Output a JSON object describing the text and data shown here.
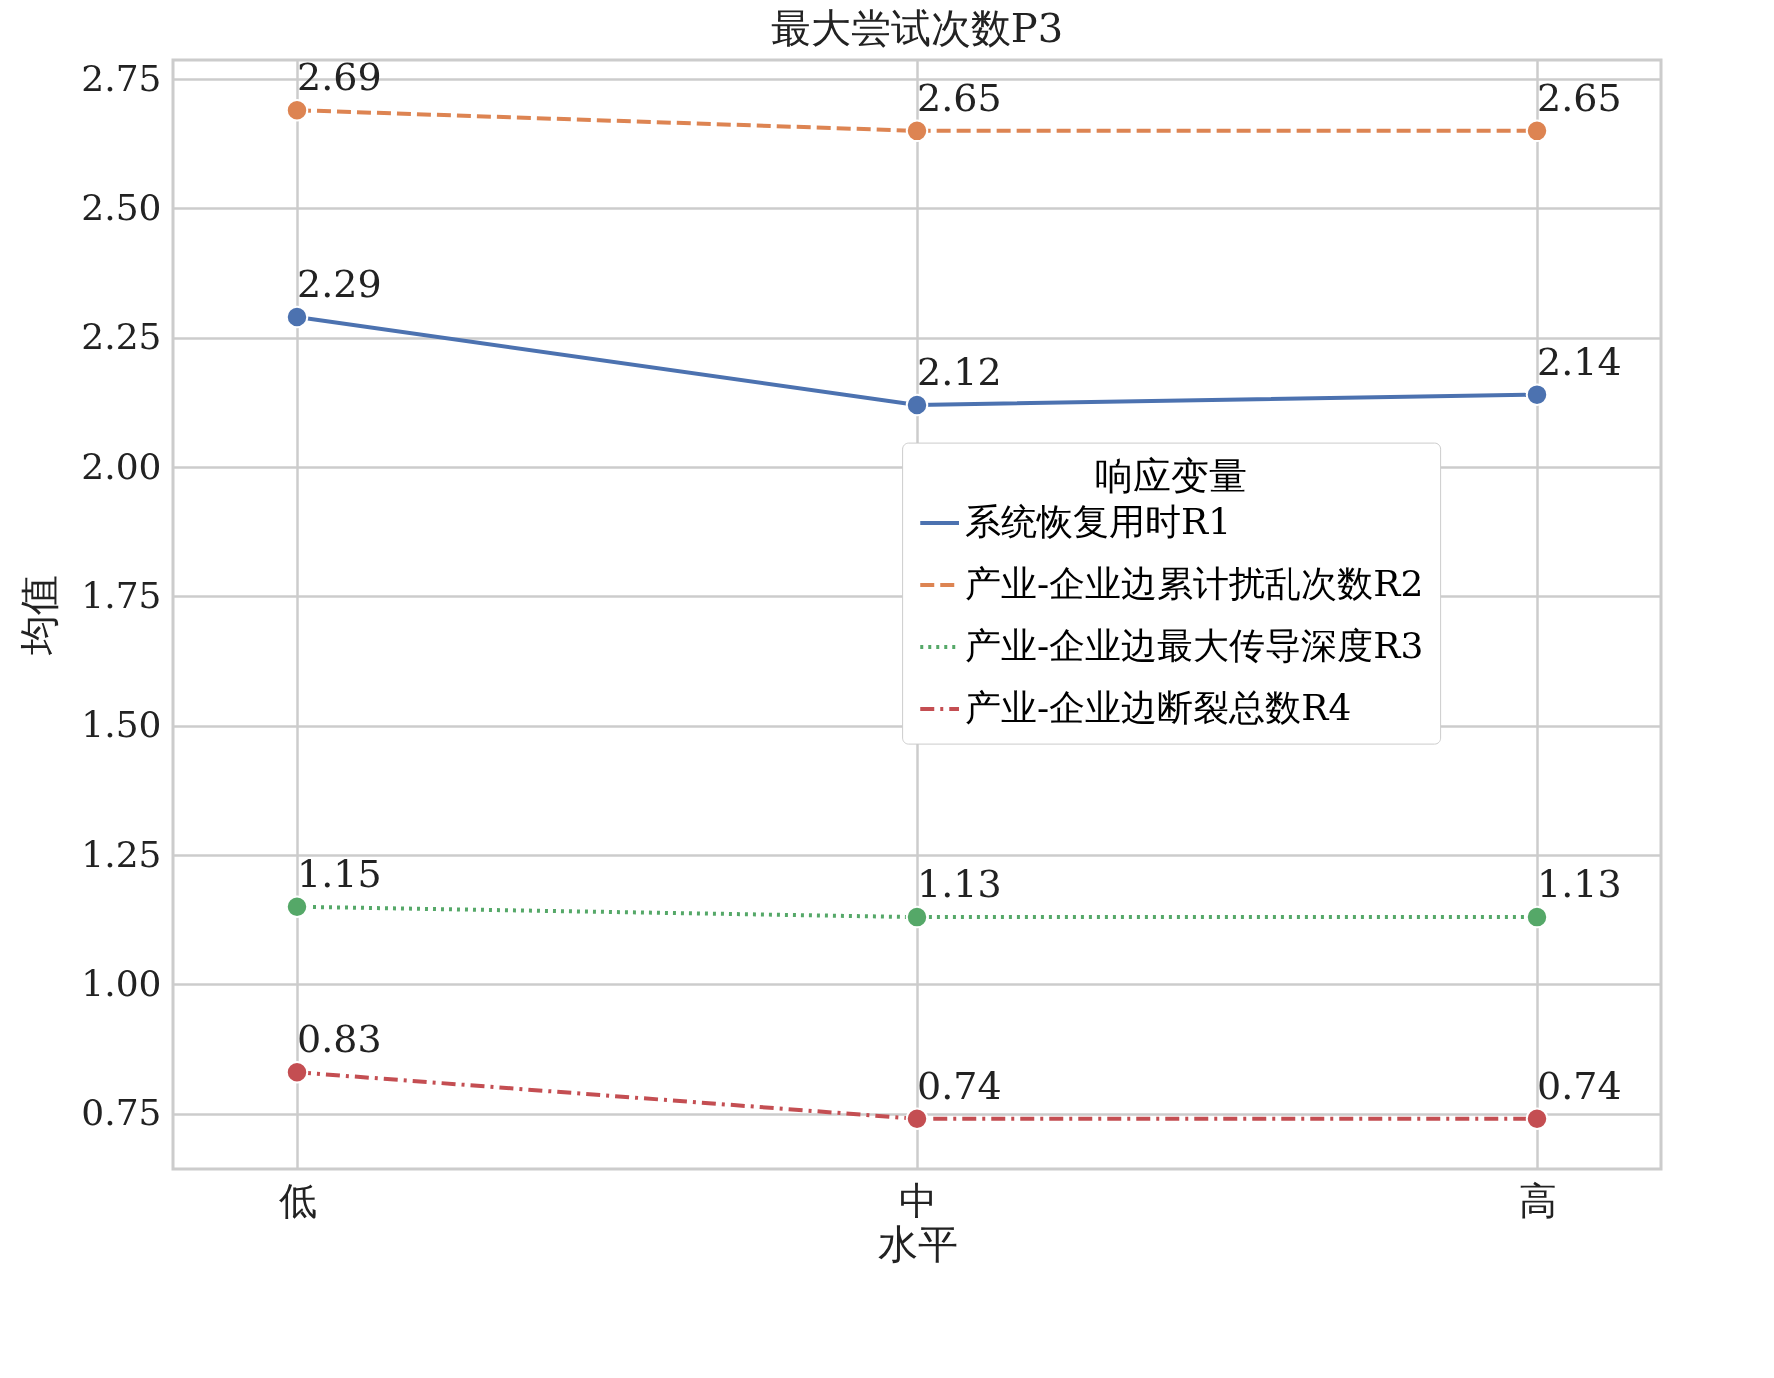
{
  "chart_data": {
    "type": "line",
    "title": "最大尝试次数P3",
    "xlabel": "水平",
    "ylabel": "均值",
    "legend_title": "响应变量",
    "categories": [
      "低",
      "中",
      "高"
    ],
    "series": [
      {
        "name": "系统恢复用时R1",
        "color": "#4c72b0",
        "line_style": "solid",
        "values": [
          2.29,
          2.12,
          2.14
        ]
      },
      {
        "name": "产业-企业边累计扰乱次数R2",
        "color": "#dd8452",
        "line_style": "dashed",
        "values": [
          2.69,
          2.65,
          2.65
        ]
      },
      {
        "name": "产业-企业边最大传导深度R3",
        "color": "#55a868",
        "line_style": "dotted",
        "values": [
          1.15,
          1.13,
          1.13
        ]
      },
      {
        "name": "产业-企业边断裂总数R4",
        "color": "#c44e52",
        "line_style": "dashdot",
        "values": [
          0.83,
          0.74,
          0.74
        ]
      }
    ],
    "ylim": [
      0.643,
      2.787
    ],
    "yticks": [
      0.75,
      {
        "value": 1,
        "label": "1.00"
      },
      1.25,
      {
        "value": 1.5,
        "label": "1.50"
      },
      1.75,
      {
        "value": 2,
        "label": "2.00"
      },
      2.25,
      {
        "value": 2.5,
        "label": "2.50"
      },
      2.75
    ],
    "grid": true,
    "legend": "right",
    "marker": "circle",
    "data_labels": true
  }
}
